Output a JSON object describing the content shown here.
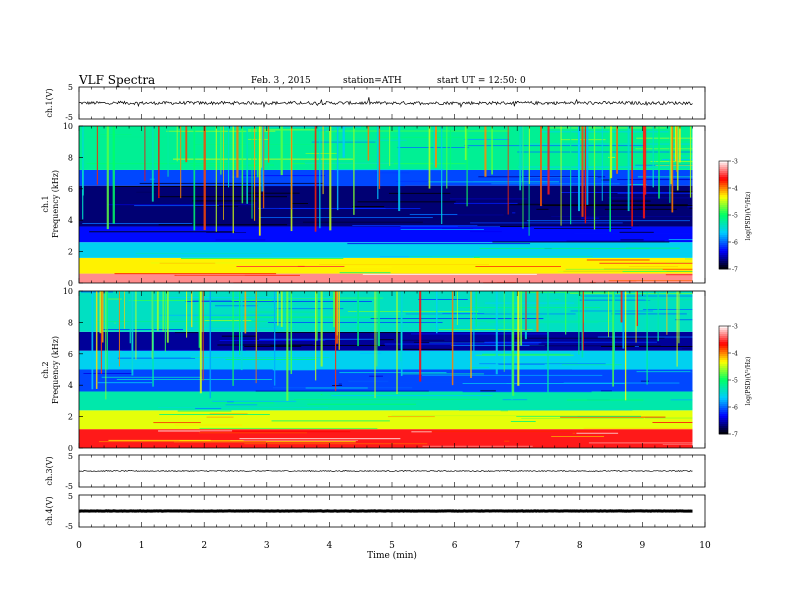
{
  "header": {
    "title": "VLF  Spectra",
    "date": "Feb. 3  , 2015",
    "station": "station=ATH",
    "start": "start  UT  =   12:50: 0"
  },
  "colors": {
    "spectrogram_scale": [
      "#000000",
      "#0000ff",
      "#00ccff",
      "#00ff66",
      "#ffff00",
      "#ff0000",
      "#ffffff"
    ]
  },
  "chart_data": [
    {
      "type": "line",
      "name": "ch1-waveform",
      "ylabel": "ch.1(V)",
      "ylim": [
        -5,
        5
      ],
      "y_ticks": [
        "5",
        "-5"
      ],
      "x_range": [
        0,
        10
      ],
      "data_extent_min": [
        0,
        9.8
      ],
      "approx_level": 0,
      "noise_amplitude": 0.5
    },
    {
      "type": "heatmap",
      "name": "ch1-spectrogram",
      "ylabel_lines": [
        "ch.1",
        "Frequency  (kHz)"
      ],
      "ylim_khz": [
        0,
        10
      ],
      "y_ticks": [
        "0",
        "2",
        "4",
        "6",
        "8",
        "10"
      ],
      "x_range_min": [
        0,
        9.8
      ],
      "colorbar": {
        "label": "log(PSD)(V²/Hz)",
        "range": [
          -7,
          -3
        ],
        "ticks": [
          "-3",
          "-4",
          "-5",
          "-6",
          "-7"
        ]
      },
      "frequency_bands": [
        {
          "from_khz": 0.0,
          "to_khz": 0.6,
          "logpsd": -3.3
        },
        {
          "from_khz": 0.6,
          "to_khz": 1.6,
          "logpsd": -4.3
        },
        {
          "from_khz": 1.6,
          "to_khz": 2.6,
          "logpsd": -5.6
        },
        {
          "from_khz": 2.6,
          "to_khz": 3.6,
          "logpsd": -6.3
        },
        {
          "from_khz": 3.6,
          "to_khz": 6.2,
          "logpsd": -6.7
        },
        {
          "from_khz": 6.2,
          "to_khz": 7.2,
          "logpsd": -6.1
        },
        {
          "from_khz": 7.2,
          "to_khz": 10.0,
          "logpsd": -5.2
        }
      ]
    },
    {
      "type": "heatmap",
      "name": "ch2-spectrogram",
      "ylabel_lines": [
        "ch.2",
        "Frequency  (kHz)"
      ],
      "ylim_khz": [
        0,
        10
      ],
      "y_ticks": [
        "0",
        "2",
        "4",
        "6",
        "8",
        "10"
      ],
      "x_range_min": [
        0,
        9.8
      ],
      "colorbar": {
        "label": "log(PSD)(V²/Hz)",
        "range": [
          -7,
          -3
        ],
        "ticks": [
          "-3",
          "-4",
          "-5",
          "-6",
          "-7"
        ]
      },
      "frequency_bands": [
        {
          "from_khz": 0.0,
          "to_khz": 1.2,
          "logpsd": -3.6
        },
        {
          "from_khz": 1.2,
          "to_khz": 2.4,
          "logpsd": -4.4
        },
        {
          "from_khz": 2.4,
          "to_khz": 3.6,
          "logpsd": -5.3
        },
        {
          "from_khz": 3.6,
          "to_khz": 5.0,
          "logpsd": -6.1
        },
        {
          "from_khz": 5.0,
          "to_khz": 6.2,
          "logpsd": -5.6
        },
        {
          "from_khz": 6.2,
          "to_khz": 7.4,
          "logpsd": -6.6
        },
        {
          "from_khz": 7.4,
          "to_khz": 10.0,
          "logpsd": -5.4
        }
      ]
    },
    {
      "type": "line",
      "name": "ch3-waveform",
      "ylabel": "ch.3(V)",
      "ylim": [
        -5,
        5
      ],
      "y_ticks": [
        "5",
        "-5"
      ],
      "approx_level": 0,
      "noise_amplitude": 0.15
    },
    {
      "type": "line",
      "name": "ch4-waveform",
      "ylabel": "ch.4(V)",
      "ylim": [
        -5,
        5
      ],
      "y_ticks": [
        "5",
        "-5"
      ],
      "approx_level": 0,
      "noise_amplitude": 0.05
    }
  ],
  "x_axis": {
    "label": "Time  (min)",
    "range": [
      0,
      10
    ],
    "ticks": [
      "0",
      "1",
      "2",
      "3",
      "4",
      "5",
      "6",
      "7",
      "8",
      "9",
      "10"
    ]
  }
}
